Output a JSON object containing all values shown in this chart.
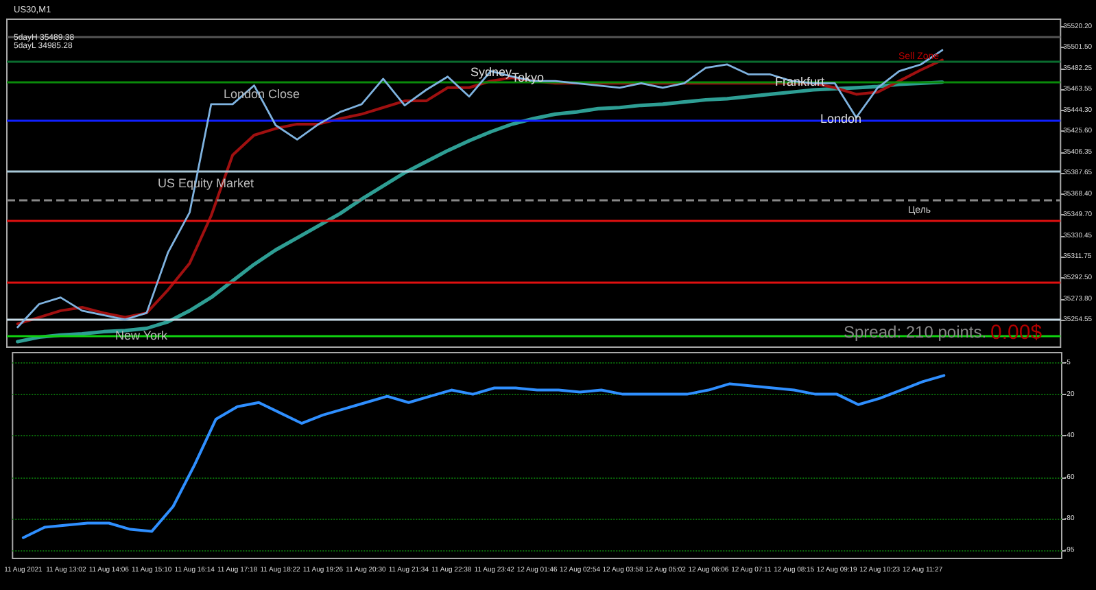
{
  "chart_data": [
    {
      "type": "line",
      "title": "US30,M1",
      "categories": [
        null,
        null,
        null,
        null,
        null,
        null,
        null,
        null,
        null,
        null,
        null,
        null,
        null,
        null,
        null,
        null,
        null,
        null,
        null,
        null,
        null,
        null,
        null,
        null,
        null,
        null,
        null,
        null,
        null,
        null,
        null,
        null,
        null,
        null,
        null,
        null,
        null,
        null,
        null,
        null,
        null,
        null,
        null,
        null,
        null,
        null,
        null,
        null,
        null
      ],
      "series": [
        {
          "color": "#2e9e94",
          "values": [
            35235,
            35239,
            35241,
            35242,
            35244,
            35245,
            35247,
            35253,
            35263,
            35275,
            35290,
            35305,
            35318,
            35329,
            35340,
            35351,
            35364,
            35376,
            35388,
            35398,
            35408,
            35417,
            35425,
            35432,
            35437,
            35441,
            35443,
            35446,
            35447,
            35449,
            35450,
            35452,
            35454,
            35455,
            35457,
            35459,
            35461,
            35463,
            35464,
            35465,
            35466,
            35468,
            35469,
            35470,
            null,
            null,
            null,
            null,
            null
          ]
        },
        {
          "color": "#a01010",
          "values": [
            35251,
            35257,
            35263,
            35266,
            35261,
            35257,
            35261,
            35282,
            35306,
            35349,
            35404,
            35422,
            35428,
            35432,
            35432,
            35437,
            35441,
            35447,
            35453,
            35453,
            35465,
            35465,
            35471,
            35474,
            35471,
            35469,
            35469,
            35469,
            35469,
            35469,
            35469,
            35469,
            35469,
            35469,
            35469,
            35469,
            35469,
            35469,
            35465,
            35459,
            35461,
            35471,
            35481,
            35490,
            null,
            null,
            null,
            null,
            null
          ]
        },
        {
          "color": "#7fb3e0",
          "values": [
            35248,
            35269,
            35275,
            35263,
            35259,
            35255,
            35261,
            35316,
            35352,
            35450,
            35450,
            35467,
            35431,
            35418,
            35432,
            35443,
            35450,
            35473,
            35449,
            35463,
            35475,
            35457,
            35480,
            35475,
            35471,
            35471,
            35469,
            35467,
            35465,
            35469,
            35465,
            35469,
            35483,
            35486,
            35477,
            35477,
            35471,
            35469,
            35469,
            35438,
            35465,
            35480,
            35486,
            35499,
            null,
            null,
            null,
            null,
            null
          ]
        }
      ],
      "ylim": [
        35230,
        35527
      ],
      "yticks": [
        {
          "value": 35254.55,
          "label": "35254.55"
        },
        {
          "value": 35273.8,
          "label": "35273.80"
        },
        {
          "value": 35292.5,
          "label": "35292.50"
        },
        {
          "value": 35311.75,
          "label": "35311.75"
        },
        {
          "value": 35330.45,
          "label": "35330.45"
        },
        {
          "value": 35349.7,
          "label": "35349.70"
        },
        {
          "value": 35368.4,
          "label": "35368.40"
        },
        {
          "value": 35387.65,
          "label": "35387.65"
        },
        {
          "value": 35406.35,
          "label": "35406.35"
        },
        {
          "value": 35425.6,
          "label": "35425.60"
        },
        {
          "value": 35444.3,
          "label": "35444.30"
        },
        {
          "value": 35463.55,
          "label": "35463.55"
        },
        {
          "value": 35482.25,
          "label": "35482.25"
        },
        {
          "value": 35501.5,
          "label": "35501.50"
        },
        {
          "value": 35520.2,
          "label": "35520.20"
        }
      ],
      "tick_labels": "y",
      "grid": false,
      "marker": "none",
      "line_style": "solid",
      "ref_lines": [
        {
          "axis": "y",
          "value": 35511,
          "color": "#555555",
          "line_style": "solid"
        },
        {
          "axis": "y",
          "value": 35489.38,
          "color": "#0a6b2e",
          "line_style": "solid"
        },
        {
          "axis": "y",
          "value": 35470,
          "color": "#0a8a0a",
          "line_style": "solid"
        },
        {
          "axis": "y",
          "value": 35435,
          "color": "#1020ff",
          "line_style": "solid"
        },
        {
          "axis": "y",
          "value": 35389,
          "color": "#a8c8d8",
          "line_style": "solid"
        },
        {
          "axis": "y",
          "value": 35363.7,
          "color": "#888888",
          "line_style": "dashed"
        },
        {
          "axis": "y",
          "value": 35345,
          "color": "#e01010",
          "line_style": "solid"
        },
        {
          "axis": "y",
          "value": 35289,
          "color": "#e01010",
          "line_style": "solid"
        },
        {
          "axis": "y",
          "value": 35255,
          "color": "#c8dce8",
          "line_style": "solid"
        },
        {
          "axis": "y",
          "value": 35240,
          "color": "#10d010",
          "line_style": "solid"
        }
      ],
      "annotations": [
        "5dayH 35489.38",
        "5dayL 34985.28",
        "London Close",
        "US Equity Market",
        "New York",
        "Sydney",
        "Tokyo",
        "Frankfurt",
        "London",
        "Sell Zone",
        "Цель",
        "Spread: 210 points.",
        "0.00$"
      ]
    },
    {
      "type": "line",
      "categories": [
        "11 Aug 2021",
        null,
        "11 Aug 13:02",
        null,
        "11 Aug 14:06",
        null,
        "11 Aug 15:10",
        null,
        "11 Aug 16:14",
        null,
        "11 Aug 17:18",
        null,
        "11 Aug 18:22",
        null,
        "11 Aug 19:26",
        null,
        "11 Aug 20:30",
        null,
        "11 Aug 21:34",
        null,
        "11 Aug 22:38",
        null,
        "11 Aug 23:42",
        null,
        "12 Aug 01:46",
        null,
        "12 Aug 02:54",
        null,
        "12 Aug 03:58",
        null,
        "12 Aug 05:02",
        null,
        "12 Aug 06:06",
        null,
        "12 Aug 07:11",
        null,
        "12 Aug 08:15",
        null,
        "12 Aug 09:19",
        null,
        "12 Aug 10:23",
        null,
        "12 Aug 11:27",
        null,
        null,
        null,
        null,
        null,
        null
      ],
      "series": [
        {
          "color": "#2f8fff",
          "values": [
            -89,
            -84,
            -83,
            -82,
            -82,
            -85,
            -86,
            -74,
            -54,
            -32,
            -26,
            -24,
            -29,
            -34,
            -30,
            -27,
            -24,
            -21,
            -24,
            -21,
            -18,
            -20,
            -17,
            -17,
            -18,
            -18,
            -19,
            -18,
            -20,
            -20,
            -20,
            -20,
            -18,
            -15,
            -16,
            -17,
            -18,
            -20,
            -20,
            -25,
            -22,
            -18,
            -14,
            -11,
            null,
            null,
            null,
            null,
            null
          ]
        }
      ],
      "ylim": [
        -99,
        0
      ],
      "yticks": [
        -95,
        -80,
        -60,
        -40,
        -20,
        -5
      ],
      "grid": "y",
      "marker": "none",
      "line_style": "solid"
    }
  ]
}
